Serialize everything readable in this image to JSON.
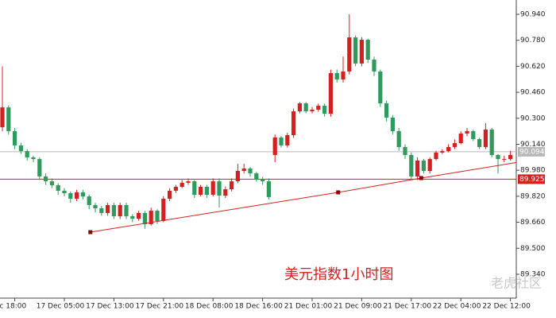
{
  "chart_data": {
    "type": "candlestick",
    "annotation": "美元指数1小时图",
    "watermark": "老虎社区",
    "up_color": "#d42020",
    "down_color": "#2f9a5c",
    "categories": [
      null,
      null,
      "ec 18:00",
      null,
      null,
      null,
      null,
      null,
      null,
      null,
      "17 Dec 05:00",
      null,
      null,
      null,
      null,
      null,
      null,
      null,
      "17 Dec 13:00",
      null,
      null,
      null,
      null,
      null,
      null,
      null,
      "17 Dec 21:00",
      null,
      null,
      null,
      null,
      null,
      null,
      null,
      "18 Dec 08:00",
      null,
      null,
      null,
      null,
      null,
      null,
      null,
      "18 Dec 16:00",
      null,
      null,
      null,
      null,
      null,
      null,
      null,
      "21 Dec 01:00",
      null,
      null,
      null,
      null,
      null,
      null,
      null,
      "21 Dec 09:00",
      null,
      null,
      null,
      null,
      null,
      null,
      null,
      "21 Dec 17:00",
      null,
      null,
      null,
      null,
      null,
      null,
      null,
      "22 Dec 04:00",
      null,
      null,
      null,
      null,
      null,
      null,
      null,
      "22 Dec 12:00"
    ],
    "open": [
      90.245,
      90.367,
      90.221,
      90.133,
      90.098,
      90.059,
      90.049,
      89.942,
      89.912,
      89.888,
      89.854,
      89.839,
      89.805,
      89.844,
      89.819,
      89.766,
      89.746,
      89.717,
      89.766,
      89.697,
      89.766,
      89.697,
      89.682,
      89.717,
      89.648,
      89.731,
      89.668,
      89.805,
      89.854,
      89.878,
      89.903,
      89.912,
      89.829,
      89.878,
      89.829,
      89.912,
      89.824,
      89.863,
      89.912,
      89.976,
      89.991,
      89.961,
      89.927,
      89.912,
      90.074,
      90.182,
      90.133,
      90.196,
      90.343,
      90.392,
      90.343,
      90.353,
      90.377,
      90.328,
      90.578,
      90.539,
      90.588,
      90.798,
      90.637,
      90.783,
      90.661,
      90.588,
      90.392,
      90.304,
      90.221,
      90.123,
      90.074,
      89.942,
      90.04,
      89.976,
      90.049,
      90.089,
      90.098,
      90.123,
      90.147,
      90.206,
      90.221,
      90.172,
      90.123,
      90.231,
      90.074,
      90.049,
      90.049
    ],
    "high": [
      90.62,
      90.38,
      90.24,
      90.15,
      90.11,
      90.07,
      90.06,
      89.96,
      89.93,
      89.9,
      89.87,
      89.85,
      89.86,
      89.86,
      89.83,
      89.78,
      89.76,
      89.78,
      89.78,
      89.78,
      89.78,
      89.71,
      89.73,
      89.73,
      89.75,
      89.74,
      89.82,
      89.87,
      89.89,
      89.92,
      89.93,
      89.92,
      89.89,
      89.89,
      89.93,
      89.93,
      89.88,
      89.93,
      90.02,
      90.02,
      90.0,
      89.97,
      89.94,
      89.93,
      90.2,
      90.19,
      90.21,
      90.36,
      90.4,
      90.4,
      90.37,
      90.39,
      90.39,
      90.6,
      90.6,
      90.68,
      90.94,
      90.81,
      90.8,
      90.79,
      90.68,
      90.6,
      90.41,
      90.32,
      90.24,
      90.14,
      90.09,
      90.06,
      90.05,
      90.06,
      90.1,
      90.11,
      90.14,
      90.17,
      90.22,
      90.24,
      90.23,
      90.18,
      90.27,
      90.24,
      90.08,
      90.07,
      90.1
    ],
    "low": [
      90.22,
      90.2,
      90.11,
      90.08,
      90.04,
      90.03,
      89.92,
      89.89,
      89.87,
      89.83,
      89.82,
      89.78,
      89.79,
      89.8,
      89.74,
      89.72,
      89.7,
      89.7,
      89.68,
      89.68,
      89.68,
      89.66,
      89.67,
      89.62,
      89.64,
      89.65,
      89.66,
      89.79,
      89.84,
      89.87,
      89.89,
      89.81,
      89.82,
      89.81,
      89.82,
      89.75,
      89.81,
      89.85,
      89.9,
      89.96,
      89.94,
      89.91,
      89.89,
      89.8,
      90.03,
      90.12,
      90.12,
      90.18,
      90.33,
      90.33,
      90.33,
      90.34,
      90.31,
      90.31,
      90.52,
      90.52,
      90.57,
      90.62,
      90.62,
      90.64,
      90.56,
      90.37,
      90.28,
      90.2,
      90.1,
      90.05,
      89.92,
      89.92,
      89.96,
      89.96,
      90.04,
      90.08,
      90.09,
      90.11,
      90.14,
      90.19,
      90.16,
      90.11,
      90.11,
      90.06,
      89.96,
      90.03,
      90.04
    ],
    "close": [
      90.367,
      90.221,
      90.133,
      90.098,
      90.059,
      90.049,
      89.942,
      89.912,
      89.888,
      89.854,
      89.839,
      89.805,
      89.844,
      89.819,
      89.766,
      89.746,
      89.717,
      89.766,
      89.697,
      89.766,
      89.697,
      89.682,
      89.717,
      89.648,
      89.731,
      89.668,
      89.805,
      89.854,
      89.878,
      89.903,
      89.912,
      89.829,
      89.878,
      89.829,
      89.912,
      89.824,
      89.863,
      89.912,
      89.976,
      89.991,
      89.961,
      89.927,
      89.912,
      89.815,
      90.182,
      90.133,
      90.196,
      90.343,
      90.392,
      90.343,
      90.353,
      90.377,
      90.328,
      90.578,
      90.539,
      90.588,
      90.798,
      90.637,
      90.783,
      90.661,
      90.588,
      90.392,
      90.304,
      90.221,
      90.123,
      90.074,
      89.942,
      90.04,
      89.976,
      90.049,
      90.089,
      90.098,
      90.123,
      90.147,
      90.206,
      90.221,
      90.172,
      90.123,
      90.231,
      90.074,
      90.049,
      90.049,
      90.074
    ],
    "ylim": [
      89.193,
      91.028
    ],
    "yticks": [
      {
        "value": 89.34,
        "label": "89.340"
      },
      {
        "value": 89.5,
        "label": "89.500"
      },
      {
        "value": 89.66,
        "label": "89.660"
      },
      {
        "value": 89.82,
        "label": "89.820"
      },
      {
        "value": 89.98,
        "label": "89.980"
      },
      {
        "value": 90.14,
        "label": "90.140"
      },
      {
        "value": 90.3,
        "label": "90.300"
      },
      {
        "value": 90.46,
        "label": "90.460"
      },
      {
        "value": 90.62,
        "label": "90.620"
      },
      {
        "value": 90.78,
        "label": "90.780"
      },
      {
        "value": 90.94,
        "label": "90.940"
      }
    ],
    "price_lines": [
      {
        "value": 90.094,
        "color": "#b8b8b8"
      },
      {
        "value": 89.925,
        "color": "#d42020"
      }
    ],
    "trendline": {
      "color": "#d42020",
      "x": [
        14.2,
        54.2,
        67.6
      ],
      "y": [
        89.599,
        89.844,
        89.932
      ]
    }
  }
}
